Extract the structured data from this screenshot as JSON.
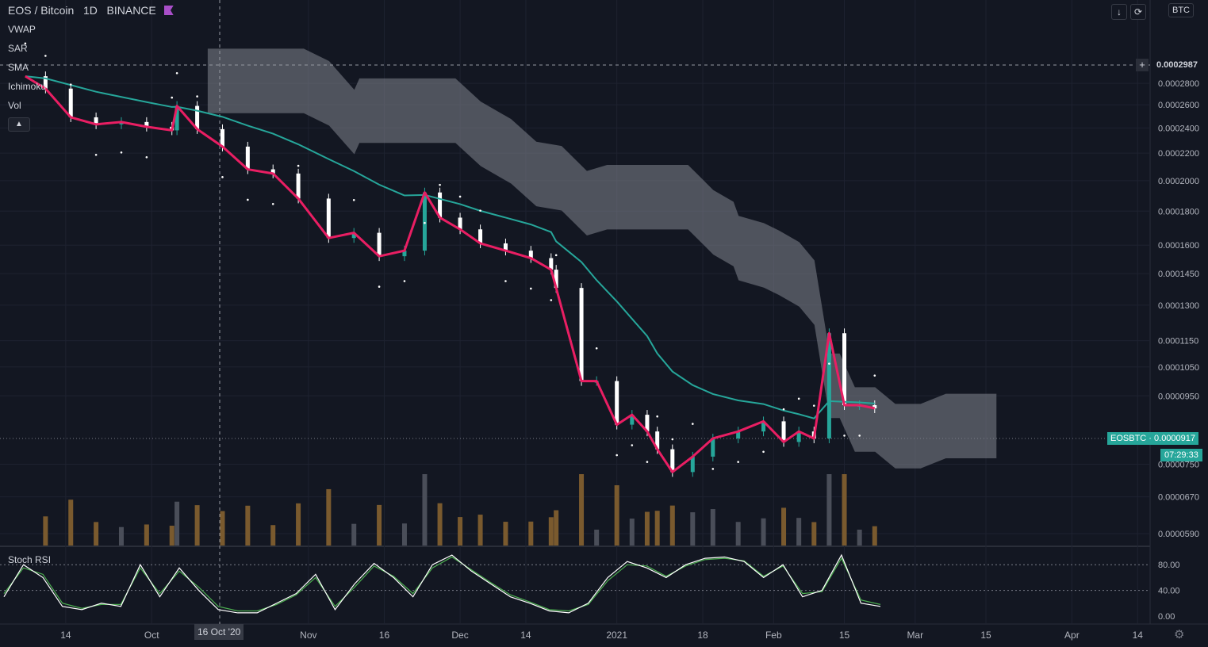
{
  "header": {
    "symbol": "EOS / Bitcoin",
    "interval": "1D",
    "exchange": "BINANCE"
  },
  "indicators": [
    "VWAP",
    "SAR",
    "SMA",
    "Ichimoku",
    "Vol"
  ],
  "stoch_title": "Stoch RSI",
  "top_controls": {
    "currency": "BTC",
    "down_arrow": "↓",
    "reload": "⟳"
  },
  "crosshair": {
    "price_label": "0.0002987",
    "date_label": "16 Oct '20",
    "plus": "+"
  },
  "last_price": {
    "symbol": "EOSBTC",
    "value": "0.0000917",
    "countdown": "07:29:33"
  },
  "colors": {
    "background": "#131722",
    "up": "#26a69a",
    "down": "#ffffff",
    "sma": "#e91e63",
    "ema_slow": "#26a69a",
    "cloud": "#787b86",
    "vol_up": "#4a4e59",
    "vol_down": "#7a5a2e",
    "stoch_k": "#ffffff",
    "stoch_d": "#4caf50"
  },
  "chart_data": [
    {
      "type": "line",
      "title": "EOS / Bitcoin",
      "scale": "log",
      "y_ticks": [
        "0.0002800",
        "0.0002600",
        "0.0002400",
        "0.0002200",
        "0.0002000",
        "0.0001800",
        "0.0001600",
        "0.0001450",
        "0.0001300",
        "0.0001150",
        "0.0001050",
        "0.0000950",
        "0.0000750",
        "0.0000670",
        "0.0000590"
      ],
      "x_ticks": [
        "14",
        "Oct",
        "Nov",
        "16",
        "Dec",
        "14",
        "2021",
        "18",
        "Feb",
        "15",
        "Mar",
        "15",
        "Apr",
        "14"
      ],
      "ylim": [
        5.7e-05,
        0.00032
      ],
      "series": [
        {
          "x": [
            "2020-09-06",
            "2020-09-10",
            "2020-09-15",
            "2020-09-20",
            "2020-09-25",
            "2020-09-30",
            "2020-10-05",
            "2020-10-06",
            "2020-10-10",
            "2020-10-15",
            "2020-10-20",
            "2020-10-25",
            "2020-10-30",
            "2020-11-05",
            "2020-11-10",
            "2020-11-15",
            "2020-11-20",
            "2020-11-24",
            "2020-11-27",
            "2020-12-01",
            "2020-12-05",
            "2020-12-10",
            "2020-12-15",
            "2020-12-19",
            "2020-12-20",
            "2020-12-25",
            "2020-12-28",
            "2021-01-01",
            "2021-01-04",
            "2021-01-07",
            "2021-01-09",
            "2021-01-12",
            "2021-01-16",
            "2021-01-20",
            "2021-01-25",
            "2021-01-30",
            "2021-02-03",
            "2021-02-06",
            "2021-02-09",
            "2021-02-12",
            "2021-02-15",
            "2021-02-18",
            "2021-02-21"
          ],
          "values": [
            0.000287,
            0.000275,
            0.000249,
            0.000243,
            0.000245,
            0.000241,
            0.000238,
            0.000259,
            0.000239,
            0.000225,
            0.000208,
            0.000205,
            0.000188,
            0.000164,
            0.000167,
            0.000154,
            0.000157,
            0.000192,
            0.000176,
            0.000169,
            0.000161,
            0.000157,
            0.000153,
            0.000147,
            0.000138,
            0.0001,
            0.0001,
            8.6e-05,
            8.9e-05,
            8.4e-05,
            7.9e-05,
            7.3e-05,
            7.7e-05,
            8.2e-05,
            8.4e-05,
            8.7e-05,
            8.1e-05,
            8.4e-05,
            8.2e-05,
            0.000118,
            9.2e-05,
            9.2e-05,
            9.1e-05
          ]
        }
      ]
    },
    {
      "type": "line",
      "title": "Stoch RSI",
      "y_ticks": [
        "80.00",
        "40.00",
        "0.00"
      ],
      "ylim": [
        -5,
        100
      ],
      "series": [
        {
          "values": [
            30,
            80,
            60,
            15,
            10,
            20,
            15,
            80,
            30,
            75,
            40,
            10,
            5,
            5,
            20,
            35,
            65,
            10,
            50,
            82,
            60,
            30,
            80,
            95,
            70,
            50,
            30,
            20,
            8,
            5,
            20,
            60,
            85,
            75,
            60,
            80,
            90,
            92,
            85,
            60,
            80,
            30,
            40,
            95,
            20,
            15
          ]
        },
        {
          "values": [
            35,
            75,
            65,
            20,
            12,
            18,
            18,
            75,
            35,
            70,
            45,
            15,
            8,
            8,
            18,
            33,
            60,
            15,
            45,
            78,
            62,
            35,
            75,
            92,
            72,
            52,
            33,
            22,
            10,
            8,
            18,
            55,
            80,
            78,
            62,
            78,
            88,
            90,
            86,
            62,
            78,
            35,
            38,
            90,
            25,
            18
          ]
        }
      ]
    }
  ]
}
